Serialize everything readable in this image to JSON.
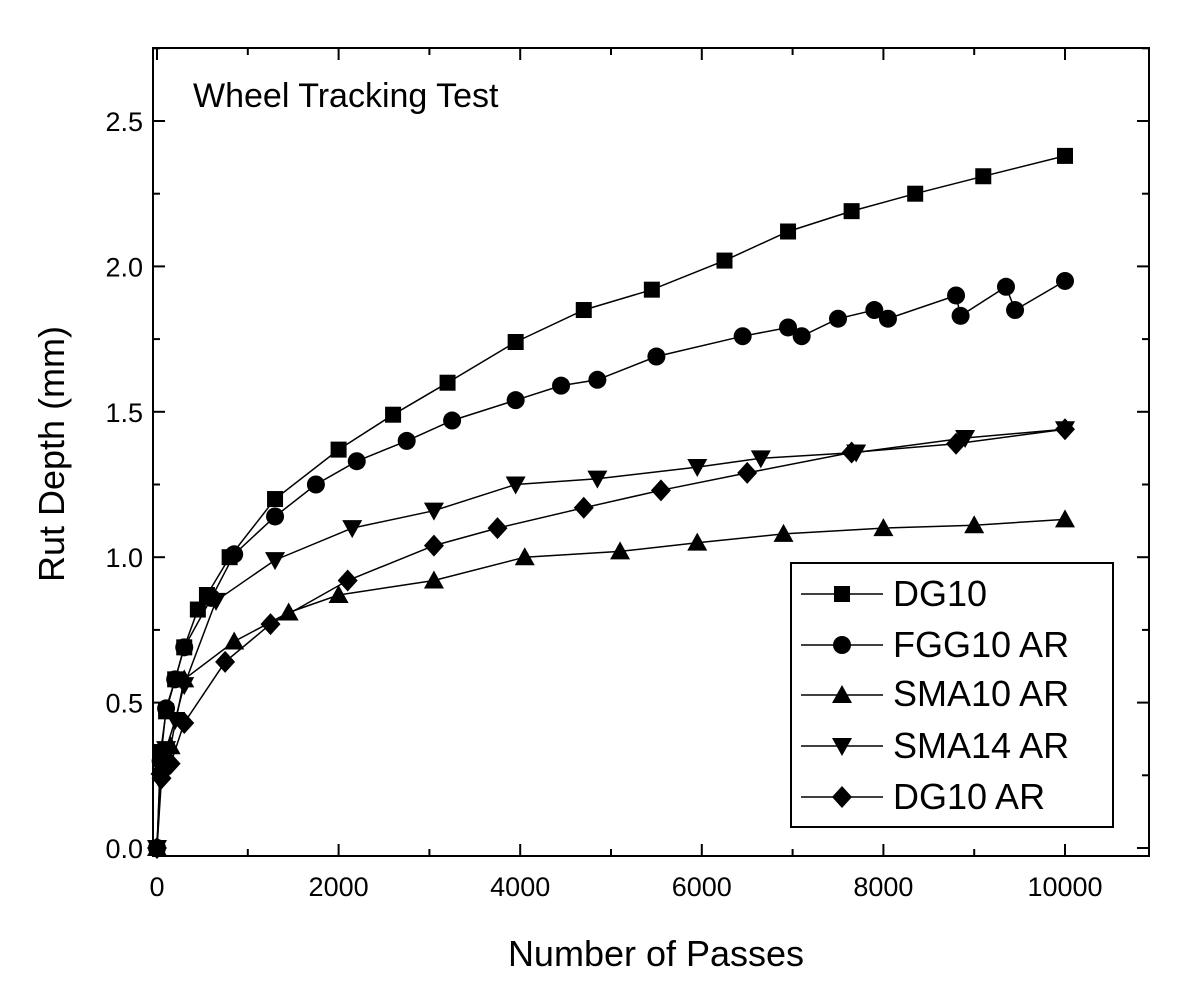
{
  "chart_data": {
    "type": "line",
    "title": "Wheel Tracking Test",
    "xlabel": "Number of Passes",
    "ylabel": "Rut Depth (mm)",
    "xlim": [
      0,
      11000
    ],
    "ylim": [
      0,
      2.75
    ],
    "xticks": [
      0,
      2000,
      4000,
      6000,
      8000,
      10000
    ],
    "xtick_labels": [
      "0",
      "2000",
      "4000",
      "6000",
      "8000",
      "10000"
    ],
    "yticks": [
      0,
      0.5,
      1.0,
      1.5,
      2.0,
      2.5
    ],
    "ytick_labels": [
      "0.0",
      "0.5",
      "1.0",
      "1.5",
      "2.0",
      "2.5"
    ],
    "legend_position": "bottom-right",
    "series": [
      {
        "name": "DG10",
        "marker": "square",
        "x": [
          0,
          40,
          100,
          200,
          300,
          450,
          550,
          800,
          1300,
          2000,
          2600,
          3200,
          3950,
          4700,
          5450,
          6250,
          6950,
          7650,
          8350,
          9100,
          10000
        ],
        "y": [
          0,
          0.33,
          0.47,
          0.58,
          0.69,
          0.82,
          0.87,
          1.0,
          1.2,
          1.37,
          1.49,
          1.6,
          1.74,
          1.85,
          1.92,
          2.02,
          2.12,
          2.19,
          2.25,
          2.31,
          2.38
        ]
      },
      {
        "name": "FGG10 AR",
        "marker": "circle",
        "x": [
          0,
          40,
          100,
          200,
          300,
          600,
          850,
          1300,
          1750,
          2200,
          2750,
          3250,
          3950,
          4450,
          4850,
          5500,
          6450,
          6950,
          7100,
          7500,
          7900,
          8050,
          8800,
          8850,
          9350,
          9450,
          10000
        ],
        "y": [
          0,
          0.3,
          0.48,
          0.58,
          0.69,
          0.86,
          1.01,
          1.14,
          1.25,
          1.33,
          1.4,
          1.47,
          1.54,
          1.59,
          1.61,
          1.69,
          1.76,
          1.79,
          1.76,
          1.82,
          1.85,
          1.82,
          1.9,
          1.83,
          1.93,
          1.85,
          1.95
        ]
      },
      {
        "name": "SMA10 AR",
        "marker": "triangle-up",
        "x": [
          0,
          40,
          150,
          300,
          850,
          1450,
          2000,
          3050,
          4050,
          5100,
          5950,
          6900,
          8000,
          9000,
          10000
        ],
        "y": [
          0,
          0.28,
          0.35,
          0.58,
          0.71,
          0.81,
          0.87,
          0.92,
          1.0,
          1.02,
          1.05,
          1.08,
          1.1,
          1.11,
          1.13
        ]
      },
      {
        "name": "SMA14 AR",
        "marker": "triangle-down",
        "x": [
          0,
          40,
          100,
          200,
          300,
          650,
          1300,
          2150,
          3050,
          3950,
          4850,
          5950,
          6650,
          7700,
          8900,
          10000
        ],
        "y": [
          0,
          0.23,
          0.34,
          0.44,
          0.56,
          0.85,
          0.99,
          1.1,
          1.16,
          1.25,
          1.27,
          1.31,
          1.34,
          1.36,
          1.41,
          1.44
        ]
      },
      {
        "name": "DG10 AR",
        "marker": "diamond",
        "x": [
          0,
          50,
          150,
          300,
          750,
          1250,
          2100,
          3050,
          3750,
          4700,
          5550,
          6500,
          7650,
          8800,
          10000
        ],
        "y": [
          0,
          0.24,
          0.29,
          0.43,
          0.64,
          0.77,
          0.92,
          1.04,
          1.1,
          1.17,
          1.23,
          1.29,
          1.36,
          1.39,
          1.44
        ]
      }
    ]
  }
}
